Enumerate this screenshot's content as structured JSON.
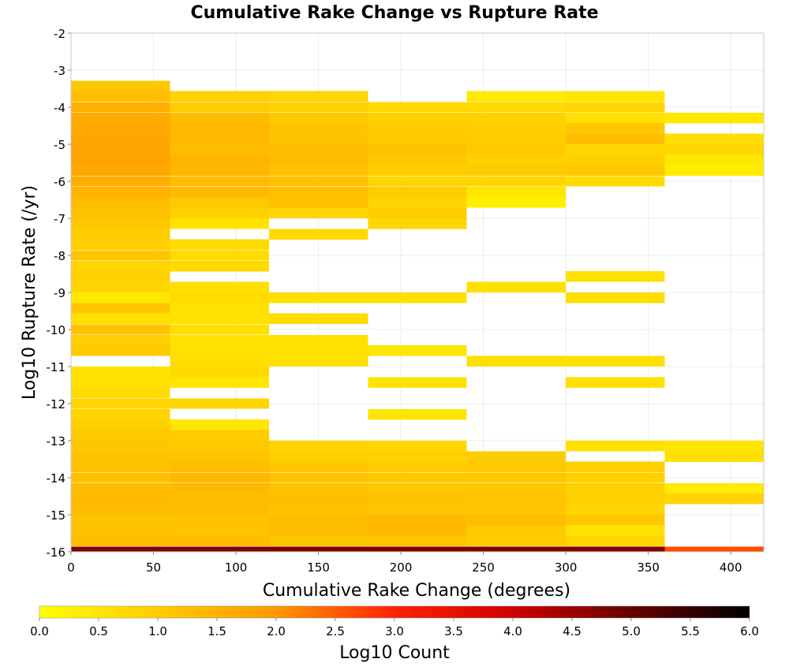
{
  "chart_data": {
    "type": "heatmap",
    "title": "Cumulative Rake Change vs Rupture Rate",
    "xlabel": "Cumulative Rake Change (degrees)",
    "ylabel": "Log10 Rupture Rate (/yr)",
    "xlim": [
      0,
      420
    ],
    "ylim": [
      -16,
      -2
    ],
    "x_ticks": [
      "0",
      "50",
      "100",
      "150",
      "200",
      "250",
      "300",
      "350",
      "400"
    ],
    "y_ticks": [
      "-2",
      "-3",
      "-4",
      "-5",
      "-6",
      "-7",
      "-8",
      "-9",
      "-10",
      "-11",
      "-12",
      "-13",
      "-14",
      "-15",
      "-16"
    ],
    "grid": true,
    "x_bin_width": 60,
    "y_bin_height": 0.2857,
    "x_bin_starts": [
      0,
      60,
      120,
      180,
      240,
      300,
      360
    ],
    "columns": [
      {
        "x_start": 0,
        "cells": [
          {
            "y": -3.43,
            "count": 1.1
          },
          {
            "y": -3.71,
            "count": 1.3
          },
          {
            "y": -4.0,
            "count": 1.55
          },
          {
            "y": -4.29,
            "count": 1.65
          },
          {
            "y": -4.57,
            "count": 1.7
          },
          {
            "y": -4.86,
            "count": 1.75
          },
          {
            "y": -5.14,
            "count": 1.75
          },
          {
            "y": -5.43,
            "count": 1.8
          },
          {
            "y": -5.71,
            "count": 1.7
          },
          {
            "y": -6.0,
            "count": 1.6
          },
          {
            "y": -6.29,
            "count": 1.5
          },
          {
            "y": -6.57,
            "count": 1.3
          },
          {
            "y": -6.86,
            "count": 1.2
          },
          {
            "y": -7.14,
            "count": 1.1
          },
          {
            "y": -7.43,
            "count": 1.0
          },
          {
            "y": -7.71,
            "count": 0.95
          },
          {
            "y": -8.0,
            "count": 1.15
          },
          {
            "y": -8.29,
            "count": 0.85
          },
          {
            "y": -8.57,
            "count": 0.95
          },
          {
            "y": -8.86,
            "count": 0.85
          },
          {
            "y": -9.14,
            "count": 0.45
          },
          {
            "y": -9.43,
            "count": 1.1
          },
          {
            "y": -9.71,
            "count": 0.6
          },
          {
            "y": -10.0,
            "count": 1.2
          },
          {
            "y": -10.29,
            "count": 0.95
          },
          {
            "y": -10.57,
            "count": 1.05
          },
          {
            "y": -11.14,
            "count": 0.55
          },
          {
            "y": -11.43,
            "count": 0.6
          },
          {
            "y": -11.71,
            "count": 0.7
          },
          {
            "y": -12.0,
            "count": 0.8
          },
          {
            "y": -12.29,
            "count": 0.85
          },
          {
            "y": -12.57,
            "count": 0.9
          },
          {
            "y": -12.86,
            "count": 1.05
          },
          {
            "y": -13.14,
            "count": 1.1
          },
          {
            "y": -13.43,
            "count": 1.15
          },
          {
            "y": -13.71,
            "count": 1.2
          },
          {
            "y": -14.0,
            "count": 1.25
          },
          {
            "y": -14.29,
            "count": 1.3
          },
          {
            "y": -14.57,
            "count": 1.35
          },
          {
            "y": -14.86,
            "count": 1.3
          },
          {
            "y": -15.14,
            "count": 1.15
          },
          {
            "y": -15.43,
            "count": 1.2
          },
          {
            "y": -15.71,
            "count": 1.25
          },
          {
            "y": -16.0,
            "count": 5.0
          }
        ]
      },
      {
        "x_start": 60,
        "cells": [
          {
            "y": -3.71,
            "count": 0.9
          },
          {
            "y": -4.0,
            "count": 1.0
          },
          {
            "y": -4.29,
            "count": 1.3
          },
          {
            "y": -4.57,
            "count": 1.35
          },
          {
            "y": -4.86,
            "count": 1.4
          },
          {
            "y": -5.14,
            "count": 1.3
          },
          {
            "y": -5.43,
            "count": 1.45
          },
          {
            "y": -5.71,
            "count": 1.4
          },
          {
            "y": -6.0,
            "count": 1.3
          },
          {
            "y": -6.29,
            "count": 1.35
          },
          {
            "y": -6.57,
            "count": 1.1
          },
          {
            "y": -6.86,
            "count": 0.9
          },
          {
            "y": -7.14,
            "count": 0.55
          },
          {
            "y": -7.71,
            "count": 0.7
          },
          {
            "y": -8.0,
            "count": 0.7
          },
          {
            "y": -8.29,
            "count": 0.75
          },
          {
            "y": -8.86,
            "count": 0.65
          },
          {
            "y": -9.14,
            "count": 0.7
          },
          {
            "y": -9.43,
            "count": 0.55
          },
          {
            "y": -9.71,
            "count": 0.6
          },
          {
            "y": -10.0,
            "count": 0.6
          },
          {
            "y": -10.29,
            "count": 0.55
          },
          {
            "y": -10.57,
            "count": 0.6
          },
          {
            "y": -10.86,
            "count": 0.65
          },
          {
            "y": -11.14,
            "count": 0.7
          },
          {
            "y": -11.43,
            "count": 0.5
          },
          {
            "y": -12.0,
            "count": 0.85
          },
          {
            "y": -12.57,
            "count": 0.5
          },
          {
            "y": -12.86,
            "count": 1.0
          },
          {
            "y": -13.14,
            "count": 1.05
          },
          {
            "y": -13.43,
            "count": 1.15
          },
          {
            "y": -13.71,
            "count": 1.3
          },
          {
            "y": -14.0,
            "count": 1.4
          },
          {
            "y": -14.29,
            "count": 1.35
          },
          {
            "y": -14.57,
            "count": 1.25
          },
          {
            "y": -14.86,
            "count": 1.3
          },
          {
            "y": -15.14,
            "count": 1.2
          },
          {
            "y": -15.43,
            "count": 1.15
          },
          {
            "y": -15.71,
            "count": 1.3
          },
          {
            "y": -16.0,
            "count": 5.0
          }
        ]
      },
      {
        "x_start": 120,
        "cells": [
          {
            "y": -3.71,
            "count": 0.8
          },
          {
            "y": -4.0,
            "count": 0.9
          },
          {
            "y": -4.29,
            "count": 1.05
          },
          {
            "y": -4.57,
            "count": 1.15
          },
          {
            "y": -4.86,
            "count": 1.2
          },
          {
            "y": -5.14,
            "count": 1.25
          },
          {
            "y": -5.43,
            "count": 1.3
          },
          {
            "y": -5.71,
            "count": 1.2
          },
          {
            "y": -6.0,
            "count": 1.2
          },
          {
            "y": -6.29,
            "count": 1.25
          },
          {
            "y": -6.57,
            "count": 1.2
          },
          {
            "y": -6.86,
            "count": 0.8
          },
          {
            "y": -7.43,
            "count": 0.75
          },
          {
            "y": -9.14,
            "count": 0.6
          },
          {
            "y": -9.71,
            "count": 0.7
          },
          {
            "y": -10.29,
            "count": 0.55
          },
          {
            "y": -10.57,
            "count": 0.6
          },
          {
            "y": -10.86,
            "count": 0.6
          },
          {
            "y": -13.14,
            "count": 0.85
          },
          {
            "y": -13.43,
            "count": 0.95
          },
          {
            "y": -13.71,
            "count": 1.1
          },
          {
            "y": -14.0,
            "count": 1.2
          },
          {
            "y": -14.29,
            "count": 1.2
          },
          {
            "y": -14.57,
            "count": 1.25
          },
          {
            "y": -14.86,
            "count": 1.2
          },
          {
            "y": -15.14,
            "count": 1.3
          },
          {
            "y": -15.43,
            "count": 1.3
          },
          {
            "y": -15.71,
            "count": 1.1
          },
          {
            "y": -16.0,
            "count": 5.0
          }
        ]
      },
      {
        "x_start": 180,
        "cells": [
          {
            "y": -4.0,
            "count": 0.75
          },
          {
            "y": -4.29,
            "count": 0.95
          },
          {
            "y": -4.57,
            "count": 1.0
          },
          {
            "y": -4.86,
            "count": 1.05
          },
          {
            "y": -5.14,
            "count": 1.2
          },
          {
            "y": -5.43,
            "count": 1.05
          },
          {
            "y": -5.71,
            "count": 0.95
          },
          {
            "y": -6.0,
            "count": 0.85
          },
          {
            "y": -6.29,
            "count": 1.0
          },
          {
            "y": -6.57,
            "count": 0.85
          },
          {
            "y": -6.86,
            "count": 1.0
          },
          {
            "y": -7.14,
            "count": 0.8
          },
          {
            "y": -9.14,
            "count": 0.6
          },
          {
            "y": -10.57,
            "count": 0.5
          },
          {
            "y": -11.43,
            "count": 0.55
          },
          {
            "y": -12.29,
            "count": 0.5
          },
          {
            "y": -13.14,
            "count": 0.8
          },
          {
            "y": -13.43,
            "count": 0.9
          },
          {
            "y": -13.71,
            "count": 1.0
          },
          {
            "y": -14.0,
            "count": 1.05
          },
          {
            "y": -14.29,
            "count": 1.1
          },
          {
            "y": -14.57,
            "count": 1.2
          },
          {
            "y": -14.86,
            "count": 1.1
          },
          {
            "y": -15.14,
            "count": 1.35
          },
          {
            "y": -15.43,
            "count": 1.35
          },
          {
            "y": -15.71,
            "count": 1.15
          },
          {
            "y": -16.0,
            "count": 5.0
          }
        ]
      },
      {
        "x_start": 240,
        "cells": [
          {
            "y": -3.71,
            "count": 0.4
          },
          {
            "y": -4.0,
            "count": 0.75
          },
          {
            "y": -4.29,
            "count": 0.9
          },
          {
            "y": -4.57,
            "count": 0.95
          },
          {
            "y": -4.86,
            "count": 1.0
          },
          {
            "y": -5.14,
            "count": 1.05
          },
          {
            "y": -5.43,
            "count": 0.9
          },
          {
            "y": -5.71,
            "count": 1.0
          },
          {
            "y": -6.0,
            "count": 0.85
          },
          {
            "y": -6.29,
            "count": 0.5
          },
          {
            "y": -6.57,
            "count": 0.3
          },
          {
            "y": -8.86,
            "count": 0.6
          },
          {
            "y": -10.86,
            "count": 0.65
          },
          {
            "y": -13.43,
            "count": 1.0
          },
          {
            "y": -13.71,
            "count": 1.05
          },
          {
            "y": -14.0,
            "count": 1.1
          },
          {
            "y": -14.29,
            "count": 1.1
          },
          {
            "y": -14.57,
            "count": 1.15
          },
          {
            "y": -14.86,
            "count": 1.1
          },
          {
            "y": -15.14,
            "count": 1.3
          },
          {
            "y": -15.43,
            "count": 1.05
          },
          {
            "y": -15.71,
            "count": 1.0
          },
          {
            "y": -16.0,
            "count": 5.0
          }
        ]
      },
      {
        "x_start": 300,
        "cells": [
          {
            "y": -3.71,
            "count": 0.5
          },
          {
            "y": -4.0,
            "count": 0.85
          },
          {
            "y": -4.29,
            "count": 0.6
          },
          {
            "y": -4.57,
            "count": 1.1
          },
          {
            "y": -4.86,
            "count": 1.3
          },
          {
            "y": -5.14,
            "count": 0.8
          },
          {
            "y": -5.43,
            "count": 0.9
          },
          {
            "y": -5.71,
            "count": 1.05
          },
          {
            "y": -6.0,
            "count": 0.7
          },
          {
            "y": -8.57,
            "count": 0.6
          },
          {
            "y": -9.14,
            "count": 0.65
          },
          {
            "y": -10.86,
            "count": 0.6
          },
          {
            "y": -11.43,
            "count": 0.6
          },
          {
            "y": -13.14,
            "count": 0.6
          },
          {
            "y": -13.71,
            "count": 0.9
          },
          {
            "y": -14.0,
            "count": 0.95
          },
          {
            "y": -14.29,
            "count": 0.9
          },
          {
            "y": -14.57,
            "count": 0.95
          },
          {
            "y": -14.86,
            "count": 0.85
          },
          {
            "y": -15.14,
            "count": 1.1
          },
          {
            "y": -15.43,
            "count": 0.55
          },
          {
            "y": -15.71,
            "count": 0.85
          },
          {
            "y": -16.0,
            "count": 5.0
          }
        ]
      },
      {
        "x_start": 360,
        "cells": [
          {
            "y": -4.29,
            "count": 0.45
          },
          {
            "y": -4.86,
            "count": 0.65
          },
          {
            "y": -5.14,
            "count": 0.8
          },
          {
            "y": -5.43,
            "count": 0.45
          },
          {
            "y": -5.71,
            "count": 0.35
          },
          {
            "y": -13.14,
            "count": 0.5
          },
          {
            "y": -13.43,
            "count": 0.6
          },
          {
            "y": -14.29,
            "count": 0.4
          },
          {
            "y": -14.57,
            "count": 0.85
          },
          {
            "y": -16.0,
            "count": 3.0
          }
        ]
      }
    ],
    "colorbar": {
      "label": "Log10 Count",
      "min": 0.0,
      "max": 6.0,
      "ticks": [
        "0.0",
        "0.5",
        "1.0",
        "1.5",
        "2.0",
        "2.5",
        "3.0",
        "3.5",
        "4.0",
        "4.5",
        "5.0",
        "5.5",
        "6.0"
      ],
      "colors": [
        "#ffff00",
        "#ff9900",
        "#ff0000",
        "#000000"
      ]
    }
  }
}
